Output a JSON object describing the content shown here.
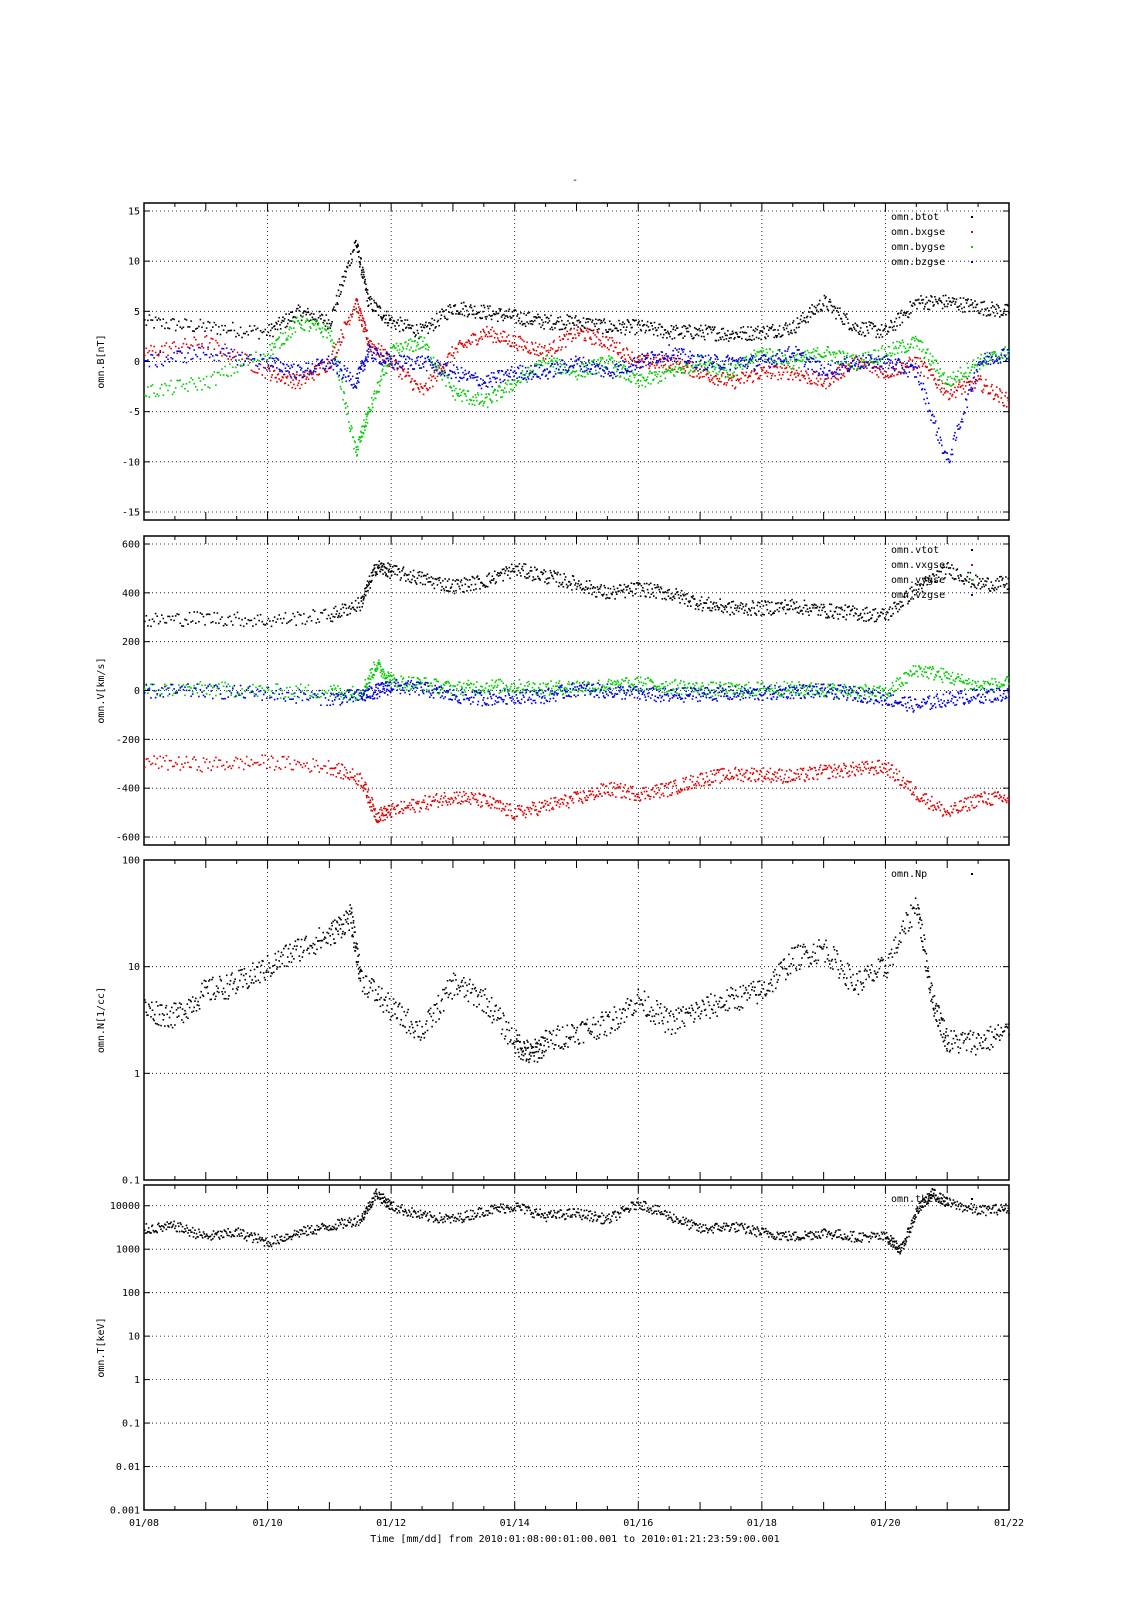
{
  "page": {
    "title": "-"
  },
  "colors": {
    "black": "#000000",
    "red": "#dd0000",
    "green": "#00cc00",
    "blue": "#0000dd"
  },
  "chart_data": [
    {
      "type": "scatter",
      "panel": "B",
      "ylabel": "omn.B[nT]",
      "ylim": [
        -15,
        15
      ],
      "yscale": "linear",
      "yticks": [
        -15,
        -10,
        -5,
        0,
        5,
        10,
        15
      ],
      "ytick_labels": [
        "-15",
        "-10",
        "-5",
        "0",
        "5",
        "10",
        "15"
      ],
      "xlim": [
        "01/08",
        "01/22"
      ],
      "grid": true,
      "legend_position": "top-right",
      "legend": [
        "omn.btot",
        "omn.bxgse",
        "omn.bygse",
        "omn.bzgse"
      ],
      "series": [
        {
          "name": "omn.btot",
          "color": "#000000",
          "x": [
            "01/08",
            "01/09",
            "01/10",
            "01/10 12h",
            "01/11",
            "01/11 10h",
            "01/11 15h",
            "01/12",
            "01/12 12h",
            "01/13",
            "01/13 12h",
            "01/14",
            "01/14 12h",
            "01/15",
            "01/15 12h",
            "01/16",
            "01/16 12h",
            "01/17",
            "01/17 12h",
            "01/18",
            "01/18 12h",
            "01/19",
            "01/19 12h",
            "01/20",
            "01/20 12h",
            "01/21",
            "01/21 12h",
            "01/22"
          ],
          "y": [
            4,
            3.5,
            3,
            5,
            4,
            12,
            6,
            4,
            3,
            5.5,
            5,
            4.5,
            4,
            4,
            3.5,
            3.5,
            3,
            3,
            2.8,
            3,
            3.5,
            6,
            3.5,
            3,
            6,
            6,
            5.5,
            5
          ]
        },
        {
          "name": "omn.bxgse",
          "color": "#dd0000",
          "x": [
            "01/08",
            "01/09",
            "01/10",
            "01/10 12h",
            "01/11",
            "01/11 10h",
            "01/11 15h",
            "01/12",
            "01/12 12h",
            "01/13",
            "01/13 12h",
            "01/14",
            "01/14 12h",
            "01/15",
            "01/15 12h",
            "01/16",
            "01/16 12h",
            "01/17",
            "01/17 12h",
            "01/18",
            "01/18 12h",
            "01/19",
            "01/19 12h",
            "01/20",
            "01/20 12h",
            "01/21",
            "01/21 12h",
            "01/22"
          ],
          "y": [
            1,
            2,
            -1,
            -2,
            0,
            6,
            2,
            0,
            -3,
            1,
            3,
            2,
            1,
            3,
            2,
            0,
            0,
            -1,
            -2,
            -1,
            -1,
            -2,
            0,
            -1,
            0,
            -3,
            -2,
            -4
          ]
        },
        {
          "name": "omn.bygse",
          "color": "#00cc00",
          "x": [
            "01/08",
            "01/09",
            "01/10",
            "01/10 12h",
            "01/11",
            "01/11 10h",
            "01/11 15h",
            "01/12",
            "01/12 12h",
            "01/13",
            "01/13 12h",
            "01/14",
            "01/14 12h",
            "01/15",
            "01/15 12h",
            "01/16",
            "01/16 12h",
            "01/17",
            "01/17 12h",
            "01/18",
            "01/18 12h",
            "01/19",
            "01/19 12h",
            "01/20",
            "01/20 12h",
            "01/21",
            "01/21 12h",
            "01/22"
          ],
          "y": [
            -3,
            -2,
            1,
            4,
            3,
            -9,
            -5,
            1,
            2,
            -3,
            -4,
            -2,
            0,
            -1,
            0,
            -2,
            -1,
            0,
            -1,
            1,
            0,
            1,
            0,
            1,
            2,
            -2,
            0,
            1
          ]
        },
        {
          "name": "omn.bzgse",
          "color": "#0000dd",
          "x": [
            "01/08",
            "01/09",
            "01/10",
            "01/10 12h",
            "01/11",
            "01/11 10h",
            "01/11 15h",
            "01/12",
            "01/12 12h",
            "01/13",
            "01/13 12h",
            "01/14",
            "01/14 12h",
            "01/15",
            "01/15 12h",
            "01/16",
            "01/16 12h",
            "01/17",
            "01/17 12h",
            "01/18",
            "01/18 12h",
            "01/19",
            "01/19 12h",
            "01/20",
            "01/20 12h",
            "01/21",
            "01/21 12h",
            "01/22"
          ],
          "y": [
            0,
            1,
            0,
            -1,
            0,
            -2,
            1,
            0,
            0,
            -1,
            -2,
            -1,
            -1,
            0,
            -1,
            0,
            1,
            0,
            0,
            0,
            1,
            -1,
            0,
            0,
            -1,
            -10,
            0,
            1
          ]
        }
      ]
    },
    {
      "type": "scatter",
      "panel": "V",
      "ylabel": "omn.V[km/s]",
      "ylim": [
        -600,
        600
      ],
      "yscale": "linear",
      "yticks": [
        -600,
        -400,
        -200,
        0,
        200,
        400,
        600
      ],
      "ytick_labels": [
        "-600",
        "-400",
        "-200",
        "0",
        "200",
        "400",
        "600"
      ],
      "xlim": [
        "01/08",
        "01/22"
      ],
      "grid": true,
      "legend_position": "top-right",
      "legend": [
        "omn.vtot",
        "omn.vxgse",
        "omn.vygse",
        "omn.vzgse"
      ],
      "series": [
        {
          "name": "omn.vtot",
          "color": "#000000",
          "x": [
            "01/08",
            "01/09",
            "01/10",
            "01/11",
            "01/11 12h",
            "01/11 18h",
            "01/12",
            "01/12 12h",
            "01/13",
            "01/13 12h",
            "01/14",
            "01/14 12h",
            "01/15",
            "01/15 12h",
            "01/16",
            "01/16 12h",
            "01/17",
            "01/17 12h",
            "01/18",
            "01/18 12h",
            "01/19",
            "01/19 12h",
            "01/20",
            "01/20 12h",
            "01/21",
            "01/21 12h",
            "01/22"
          ],
          "y": [
            290,
            300,
            290,
            310,
            360,
            510,
            490,
            460,
            430,
            450,
            500,
            470,
            440,
            400,
            420,
            400,
            360,
            340,
            340,
            350,
            330,
            320,
            310,
            420,
            500,
            440,
            440
          ]
        },
        {
          "name": "omn.vxgse",
          "color": "#dd0000",
          "x": [
            "01/08",
            "01/09",
            "01/10",
            "01/11",
            "01/11 12h",
            "01/11 18h",
            "01/12",
            "01/12 12h",
            "01/13",
            "01/13 12h",
            "01/14",
            "01/14 12h",
            "01/15",
            "01/15 12h",
            "01/16",
            "01/16 12h",
            "01/17",
            "01/17 12h",
            "01/18",
            "01/18 12h",
            "01/19",
            "01/19 12h",
            "01/20",
            "01/20 12h",
            "01/21",
            "01/21 12h",
            "01/22"
          ],
          "y": [
            -290,
            -300,
            -290,
            -310,
            -360,
            -510,
            -490,
            -460,
            -430,
            -450,
            -500,
            -470,
            -440,
            -400,
            -420,
            -400,
            -360,
            -340,
            -340,
            -350,
            -330,
            -320,
            -310,
            -420,
            -500,
            -440,
            -440
          ]
        },
        {
          "name": "omn.vygse",
          "color": "#00cc00",
          "x": [
            "01/08",
            "01/09",
            "01/10",
            "01/11",
            "01/11 12h",
            "01/11 18h",
            "01/12",
            "01/12 12h",
            "01/13",
            "01/13 12h",
            "01/14",
            "01/14 12h",
            "01/15",
            "01/15 12h",
            "01/16",
            "01/16 12h",
            "01/17",
            "01/17 12h",
            "01/18",
            "01/18 12h",
            "01/19",
            "01/19 12h",
            "01/20",
            "01/20 12h",
            "01/21",
            "01/21 12h",
            "01/22"
          ],
          "y": [
            5,
            10,
            0,
            0,
            -10,
            110,
            40,
            30,
            10,
            20,
            20,
            10,
            20,
            20,
            30,
            20,
            10,
            5,
            10,
            10,
            5,
            0,
            -10,
            90,
            60,
            20,
            30
          ]
        },
        {
          "name": "omn.vzgse",
          "color": "#0000dd",
          "x": [
            "01/08",
            "01/09",
            "01/10",
            "01/11",
            "01/11 12h",
            "01/11 18h",
            "01/12",
            "01/12 12h",
            "01/13",
            "01/13 12h",
            "01/14",
            "01/14 12h",
            "01/15",
            "01/15 12h",
            "01/16",
            "01/16 12h",
            "01/17",
            "01/17 12h",
            "01/18",
            "01/18 12h",
            "01/19",
            "01/19 12h",
            "01/20",
            "01/20 12h",
            "01/21",
            "01/21 12h",
            "01/22"
          ],
          "y": [
            0,
            0,
            -10,
            -30,
            -20,
            0,
            20,
            10,
            -20,
            -30,
            -20,
            -20,
            10,
            0,
            -10,
            -20,
            -10,
            -10,
            -10,
            0,
            0,
            -10,
            -30,
            -60,
            -30,
            -20,
            -10
          ]
        }
      ]
    },
    {
      "type": "scatter",
      "panel": "N",
      "ylabel": "omn.N[1/cc]",
      "ylim": [
        0.1,
        100
      ],
      "yscale": "log",
      "yticks": [
        0.1,
        1,
        10,
        100
      ],
      "ytick_labels": [
        "0.1",
        "1",
        "10",
        "100"
      ],
      "xlim": [
        "01/08",
        "01/22"
      ],
      "grid": true,
      "legend_position": "top-right",
      "legend": [
        "omn.Np"
      ],
      "series": [
        {
          "name": "omn.Np",
          "color": "#000000",
          "x": [
            "01/08",
            "01/08 12h",
            "01/09",
            "01/09 12h",
            "01/10",
            "01/10 12h",
            "01/11",
            "01/11 8h",
            "01/11 12h",
            "01/12",
            "01/12 12h",
            "01/13",
            "01/13 12h",
            "01/14",
            "01/14 6h",
            "01/14 12h",
            "01/15",
            "01/15 12h",
            "01/16",
            "01/16 12h",
            "01/17",
            "01/17 12h",
            "01/18",
            "01/18 12h",
            "01/19",
            "01/19 12h",
            "01/20",
            "01/20 12h",
            "01/20 18h",
            "01/21",
            "01/21 12h",
            "01/22"
          ],
          "y": [
            4,
            3.5,
            6,
            7,
            10,
            15,
            20,
            30,
            8,
            4,
            2.5,
            7,
            5,
            2,
            1.5,
            2,
            2.5,
            3,
            5,
            3,
            4,
            5,
            6,
            12,
            15,
            7,
            10,
            40,
            5,
            2,
            2,
            2.5
          ]
        }
      ]
    },
    {
      "type": "scatter",
      "panel": "T",
      "ylabel": "omn.T[keV]",
      "ylim": [
        0.001,
        30000
      ],
      "yscale": "log",
      "yticks": [
        0.001,
        0.01,
        0.1,
        1,
        10,
        100,
        1000,
        10000
      ],
      "ytick_labels": [
        "0.001",
        "0.01",
        "0.1",
        "1",
        "10",
        "100",
        "1000",
        "10000"
      ],
      "xlim": [
        "01/08",
        "01/22"
      ],
      "grid": true,
      "legend_position": "top-right",
      "legend": [
        "omn.tkev"
      ],
      "series": [
        {
          "name": "omn.tkev",
          "color": "#000000",
          "x": [
            "01/08",
            "01/08 12h",
            "01/09",
            "01/09 12h",
            "01/10",
            "01/10 12h",
            "01/11",
            "01/11 12h",
            "01/11 18h",
            "01/12",
            "01/12 12h",
            "01/13",
            "01/13 12h",
            "01/14",
            "01/14 12h",
            "01/15",
            "01/15 12h",
            "01/16",
            "01/16 12h",
            "01/17",
            "01/17 12h",
            "01/18",
            "01/18 12h",
            "01/19",
            "01/19 12h",
            "01/20",
            "01/20 6h",
            "01/20 12h",
            "01/20 18h",
            "01/21",
            "01/21 12h",
            "01/22"
          ],
          "y": [
            3000,
            3500,
            2000,
            2500,
            1500,
            2500,
            3500,
            5000,
            20000,
            10000,
            6000,
            5000,
            8000,
            10000,
            6000,
            7000,
            5000,
            12000,
            6000,
            3000,
            3500,
            2500,
            2000,
            2500,
            2000,
            2000,
            1000,
            8000,
            20000,
            12000,
            8000,
            9000
          ]
        }
      ]
    }
  ],
  "x_axis": {
    "tick_labels": [
      "01/08",
      "01/10",
      "01/12",
      "01/14",
      "01/16",
      "01/18",
      "01/20",
      "01/22"
    ],
    "label": "Time [mm/dd]  from 2010:01:08:00:01:00.001  to  2010:01:21:23:59:00.001"
  }
}
